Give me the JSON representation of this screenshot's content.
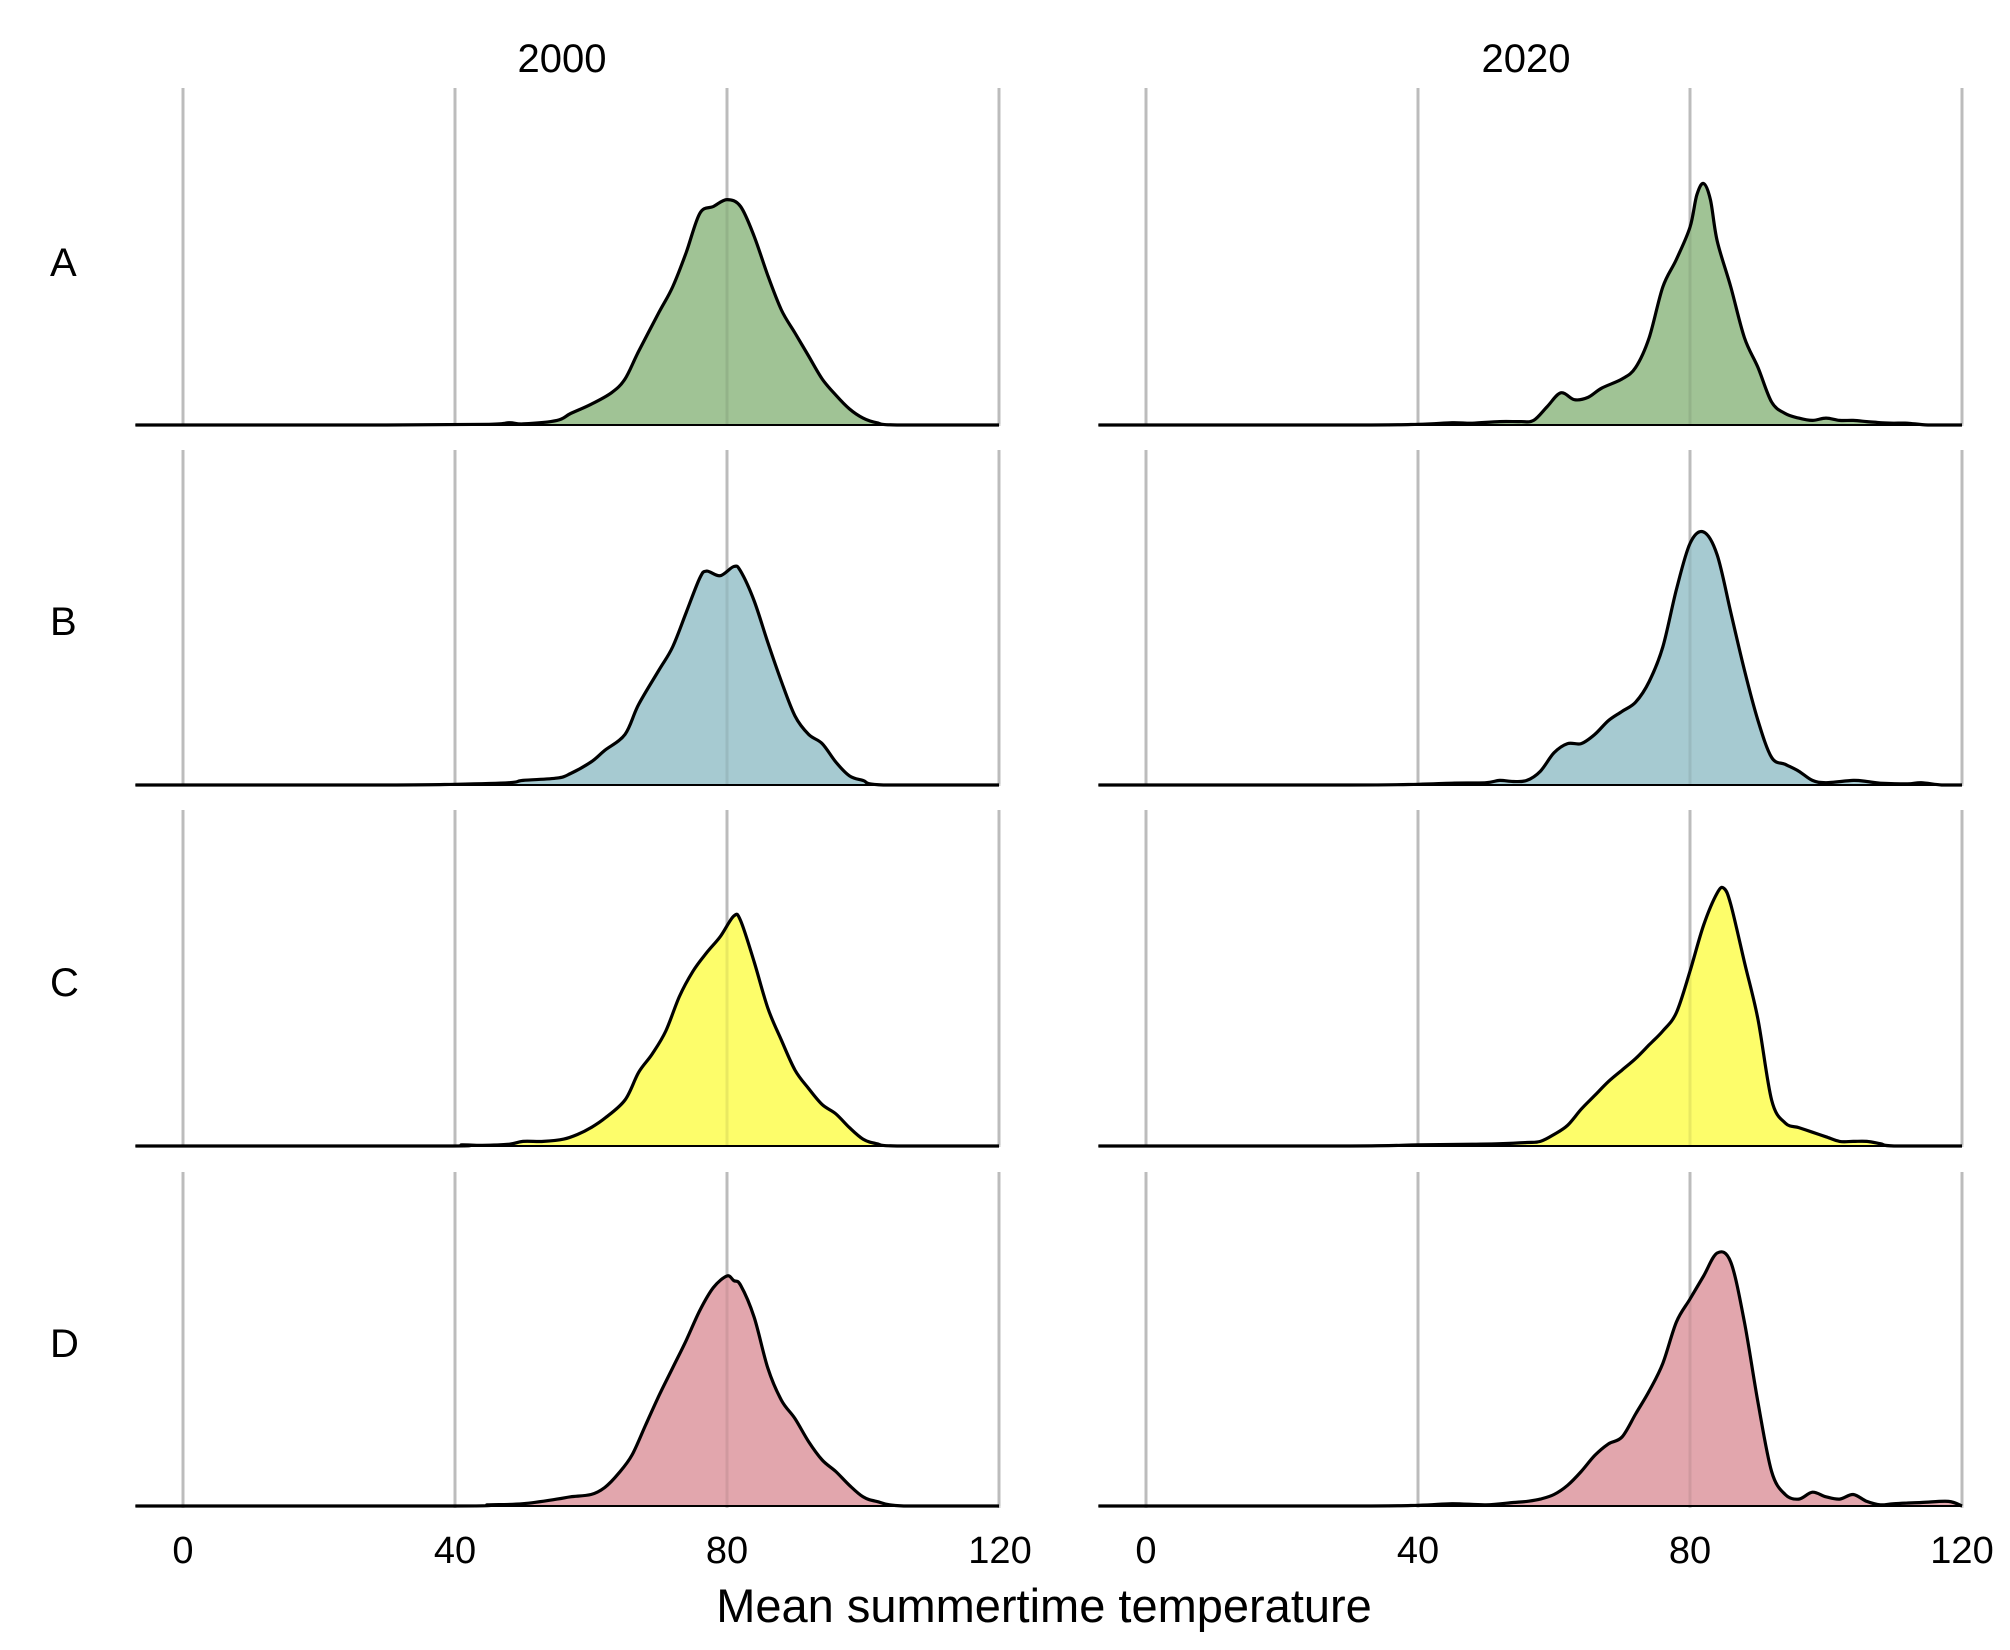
{
  "chart_data": {
    "type": "area",
    "subtype": "ridgeline density (faceted)",
    "xlabel": "Mean summertime temperature",
    "ylabel": "",
    "xlim": [
      -7,
      120
    ],
    "xticks": [
      0,
      40,
      80,
      120
    ],
    "grid": "vertical major gridlines at 0, 40, 80, 120",
    "legend": "none",
    "facets": [
      "2000",
      "2020"
    ],
    "rows": [
      "A",
      "B",
      "C",
      "D"
    ],
    "colors": {
      "A": "#a0c395",
      "B": "#a6cad1",
      "C": "#fdfd6a",
      "D": "#e2a6ad"
    },
    "series": [
      {
        "facet": "2000",
        "group": "A",
        "peak_x": 79,
        "points": [
          [
            -7,
            0
          ],
          [
            30,
            0
          ],
          [
            45,
            0.003
          ],
          [
            48,
            0.01
          ],
          [
            50,
            0.005
          ],
          [
            55,
            0.02
          ],
          [
            57,
            0.05
          ],
          [
            60,
            0.09
          ],
          [
            63,
            0.14
          ],
          [
            65,
            0.2
          ],
          [
            67,
            0.32
          ],
          [
            70,
            0.49
          ],
          [
            72,
            0.6
          ],
          [
            74,
            0.75
          ],
          [
            76,
            0.92
          ],
          [
            78,
            0.95
          ],
          [
            80,
            0.98
          ],
          [
            82,
            0.95
          ],
          [
            84,
            0.82
          ],
          [
            86,
            0.65
          ],
          [
            88,
            0.5
          ],
          [
            90,
            0.4
          ],
          [
            92,
            0.3
          ],
          [
            94,
            0.2
          ],
          [
            96,
            0.13
          ],
          [
            98,
            0.07
          ],
          [
            100,
            0.03
          ],
          [
            102,
            0.01
          ],
          [
            105,
            0
          ],
          [
            120,
            0
          ]
        ]
      },
      {
        "facet": "2000",
        "group": "B",
        "peak_x": 81,
        "points": [
          [
            -7,
            0
          ],
          [
            30,
            0
          ],
          [
            40,
            0.003
          ],
          [
            48,
            0.01
          ],
          [
            50,
            0.02
          ],
          [
            55,
            0.03
          ],
          [
            57,
            0.05
          ],
          [
            60,
            0.1
          ],
          [
            62,
            0.15
          ],
          [
            65,
            0.22
          ],
          [
            67,
            0.35
          ],
          [
            70,
            0.5
          ],
          [
            72,
            0.6
          ],
          [
            74,
            0.75
          ],
          [
            76,
            0.9
          ],
          [
            77,
            0.93
          ],
          [
            79,
            0.91
          ],
          [
            81,
            0.95
          ],
          [
            82,
            0.93
          ],
          [
            84,
            0.8
          ],
          [
            86,
            0.62
          ],
          [
            88,
            0.45
          ],
          [
            90,
            0.3
          ],
          [
            92,
            0.22
          ],
          [
            94,
            0.18
          ],
          [
            96,
            0.1
          ],
          [
            98,
            0.04
          ],
          [
            100,
            0.02
          ],
          [
            103,
            0
          ],
          [
            120,
            0
          ]
        ]
      },
      {
        "facet": "2000",
        "group": "C",
        "peak_x": 81,
        "points": [
          [
            -7,
            0
          ],
          [
            38,
            0
          ],
          [
            41,
            0.005
          ],
          [
            44,
            0.003
          ],
          [
            48,
            0.008
          ],
          [
            50,
            0.02
          ],
          [
            53,
            0.02
          ],
          [
            56,
            0.03
          ],
          [
            58,
            0.05
          ],
          [
            60,
            0.08
          ],
          [
            62,
            0.12
          ],
          [
            65,
            0.2
          ],
          [
            67,
            0.32
          ],
          [
            69,
            0.4
          ],
          [
            71,
            0.5
          ],
          [
            73,
            0.65
          ],
          [
            75,
            0.76
          ],
          [
            77,
            0.84
          ],
          [
            79,
            0.91
          ],
          [
            81,
            1.0
          ],
          [
            82,
            0.98
          ],
          [
            84,
            0.8
          ],
          [
            86,
            0.6
          ],
          [
            88,
            0.46
          ],
          [
            90,
            0.33
          ],
          [
            92,
            0.25
          ],
          [
            94,
            0.18
          ],
          [
            96,
            0.14
          ],
          [
            98,
            0.08
          ],
          [
            100,
            0.03
          ],
          [
            102,
            0.01
          ],
          [
            105,
            0
          ],
          [
            120,
            0
          ]
        ]
      },
      {
        "facet": "2000",
        "group": "D",
        "peak_x": 80,
        "points": [
          [
            -7,
            0
          ],
          [
            40,
            0
          ],
          [
            45,
            0.005
          ],
          [
            50,
            0.01
          ],
          [
            55,
            0.03
          ],
          [
            57,
            0.04
          ],
          [
            60,
            0.05
          ],
          [
            62,
            0.08
          ],
          [
            64,
            0.14
          ],
          [
            66,
            0.22
          ],
          [
            68,
            0.35
          ],
          [
            70,
            0.48
          ],
          [
            72,
            0.6
          ],
          [
            74,
            0.72
          ],
          [
            76,
            0.85
          ],
          [
            78,
            0.95
          ],
          [
            80,
            1.0
          ],
          [
            81,
            0.98
          ],
          [
            82,
            0.96
          ],
          [
            84,
            0.82
          ],
          [
            86,
            0.6
          ],
          [
            88,
            0.46
          ],
          [
            90,
            0.38
          ],
          [
            92,
            0.28
          ],
          [
            94,
            0.2
          ],
          [
            96,
            0.15
          ],
          [
            98,
            0.09
          ],
          [
            100,
            0.04
          ],
          [
            102,
            0.02
          ],
          [
            106,
            0
          ],
          [
            120,
            0
          ]
        ]
      },
      {
        "facet": "2020",
        "group": "A",
        "peak_x": 82,
        "points": [
          [
            -7,
            0
          ],
          [
            30,
            0
          ],
          [
            40,
            0.003
          ],
          [
            45,
            0.01
          ],
          [
            48,
            0.008
          ],
          [
            52,
            0.015
          ],
          [
            55,
            0.015
          ],
          [
            57,
            0.02
          ],
          [
            59,
            0.08
          ],
          [
            61,
            0.14
          ],
          [
            63,
            0.11
          ],
          [
            65,
            0.12
          ],
          [
            67,
            0.16
          ],
          [
            70,
            0.2
          ],
          [
            72,
            0.25
          ],
          [
            74,
            0.38
          ],
          [
            76,
            0.6
          ],
          [
            78,
            0.72
          ],
          [
            80,
            0.86
          ],
          [
            81,
            1.0
          ],
          [
            82,
            1.05
          ],
          [
            83,
            0.98
          ],
          [
            84,
            0.8
          ],
          [
            86,
            0.6
          ],
          [
            88,
            0.38
          ],
          [
            90,
            0.25
          ],
          [
            92,
            0.1
          ],
          [
            94,
            0.05
          ],
          [
            96,
            0.03
          ],
          [
            98,
            0.02
          ],
          [
            100,
            0.03
          ],
          [
            102,
            0.02
          ],
          [
            104,
            0.02
          ],
          [
            106,
            0.015
          ],
          [
            108,
            0.01
          ],
          [
            110,
            0.008
          ],
          [
            112,
            0.008
          ],
          [
            115,
            0
          ],
          [
            120,
            0
          ]
        ]
      },
      {
        "facet": "2020",
        "group": "B",
        "peak_x": 82,
        "points": [
          [
            -7,
            0
          ],
          [
            30,
            0
          ],
          [
            40,
            0.003
          ],
          [
            45,
            0.008
          ],
          [
            50,
            0.01
          ],
          [
            52,
            0.02
          ],
          [
            54,
            0.015
          ],
          [
            56,
            0.02
          ],
          [
            58,
            0.06
          ],
          [
            60,
            0.14
          ],
          [
            62,
            0.18
          ],
          [
            64,
            0.18
          ],
          [
            66,
            0.22
          ],
          [
            68,
            0.28
          ],
          [
            70,
            0.32
          ],
          [
            72,
            0.36
          ],
          [
            74,
            0.45
          ],
          [
            76,
            0.6
          ],
          [
            78,
            0.85
          ],
          [
            80,
            1.05
          ],
          [
            82,
            1.1
          ],
          [
            84,
            1.0
          ],
          [
            86,
            0.75
          ],
          [
            88,
            0.5
          ],
          [
            90,
            0.28
          ],
          [
            92,
            0.12
          ],
          [
            94,
            0.09
          ],
          [
            96,
            0.06
          ],
          [
            98,
            0.02
          ],
          [
            100,
            0.01
          ],
          [
            104,
            0.02
          ],
          [
            106,
            0.015
          ],
          [
            108,
            0.008
          ],
          [
            112,
            0.005
          ],
          [
            114,
            0.01
          ],
          [
            117,
            0
          ],
          [
            120,
            0
          ]
        ]
      },
      {
        "facet": "2020",
        "group": "C",
        "peak_x": 84,
        "points": [
          [
            -7,
            0
          ],
          [
            30,
            0
          ],
          [
            40,
            0.005
          ],
          [
            48,
            0.008
          ],
          [
            52,
            0.01
          ],
          [
            56,
            0.015
          ],
          [
            58,
            0.02
          ],
          [
            60,
            0.05
          ],
          [
            62,
            0.09
          ],
          [
            64,
            0.16
          ],
          [
            66,
            0.22
          ],
          [
            68,
            0.28
          ],
          [
            70,
            0.33
          ],
          [
            72,
            0.38
          ],
          [
            74,
            0.44
          ],
          [
            76,
            0.5
          ],
          [
            78,
            0.58
          ],
          [
            80,
            0.76
          ],
          [
            82,
            0.96
          ],
          [
            84,
            1.1
          ],
          [
            85,
            1.12
          ],
          [
            86,
            1.05
          ],
          [
            88,
            0.8
          ],
          [
            90,
            0.55
          ],
          [
            92,
            0.2
          ],
          [
            94,
            0.1
          ],
          [
            96,
            0.08
          ],
          [
            98,
            0.06
          ],
          [
            100,
            0.04
          ],
          [
            102,
            0.02
          ],
          [
            104,
            0.02
          ],
          [
            106,
            0.02
          ],
          [
            108,
            0.01
          ],
          [
            110,
            0
          ],
          [
            120,
            0
          ]
        ]
      },
      {
        "facet": "2020",
        "group": "D",
        "peak_x": 85,
        "points": [
          [
            -7,
            0
          ],
          [
            30,
            0
          ],
          [
            40,
            0.003
          ],
          [
            45,
            0.01
          ],
          [
            50,
            0.005
          ],
          [
            54,
            0.015
          ],
          [
            56,
            0.02
          ],
          [
            58,
            0.03
          ],
          [
            60,
            0.05
          ],
          [
            62,
            0.09
          ],
          [
            64,
            0.15
          ],
          [
            66,
            0.22
          ],
          [
            68,
            0.27
          ],
          [
            70,
            0.3
          ],
          [
            72,
            0.4
          ],
          [
            74,
            0.5
          ],
          [
            76,
            0.62
          ],
          [
            78,
            0.8
          ],
          [
            80,
            0.9
          ],
          [
            82,
            1.0
          ],
          [
            84,
            1.1
          ],
          [
            86,
            1.06
          ],
          [
            88,
            0.8
          ],
          [
            90,
            0.45
          ],
          [
            92,
            0.15
          ],
          [
            94,
            0.05
          ],
          [
            96,
            0.03
          ],
          [
            98,
            0.06
          ],
          [
            100,
            0.04
          ],
          [
            102,
            0.03
          ],
          [
            104,
            0.05
          ],
          [
            106,
            0.02
          ],
          [
            108,
            0.005
          ],
          [
            110,
            0.01
          ],
          [
            114,
            0.015
          ],
          [
            118,
            0.02
          ],
          [
            120,
            0
          ]
        ]
      }
    ]
  }
}
